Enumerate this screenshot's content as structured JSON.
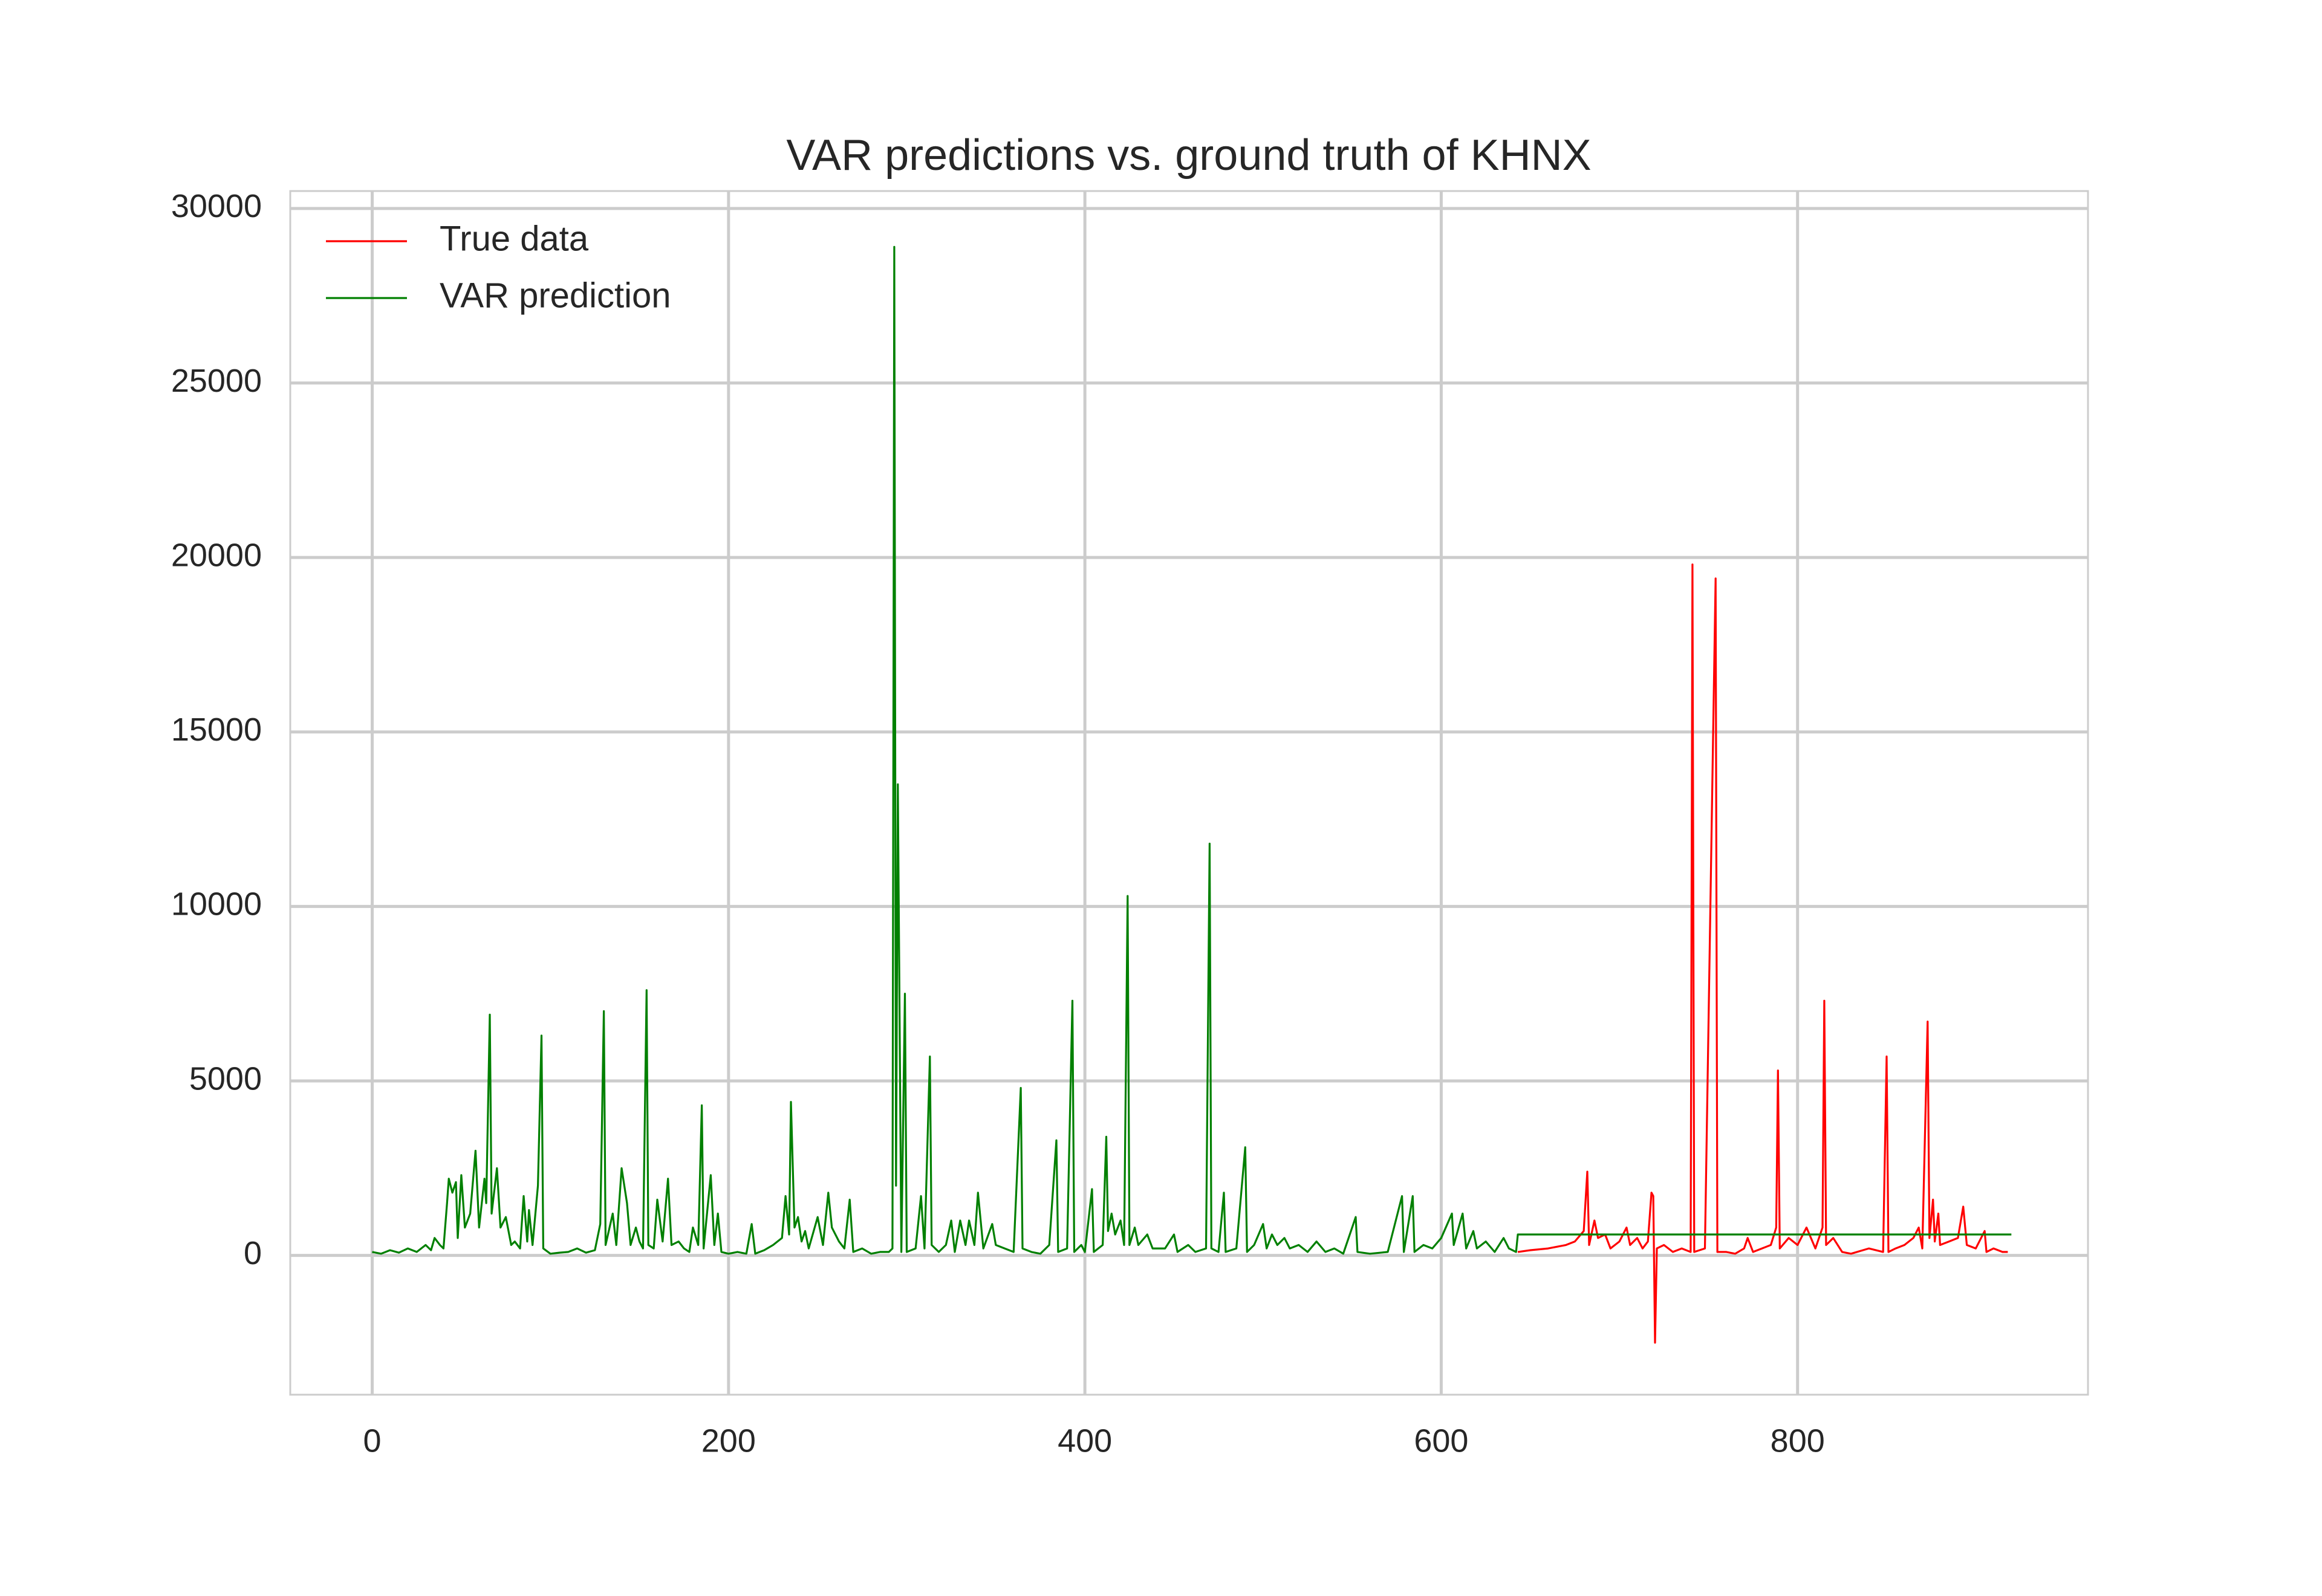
{
  "chart_data": {
    "type": "line",
    "title": "VAR predictions vs. ground truth of KHNX",
    "xlim": [
      -46,
      963
    ],
    "ylim": [
      -3990,
      30500
    ],
    "xticks": [
      0,
      200,
      400,
      600,
      800
    ],
    "yticks": [
      0,
      5000,
      10000,
      15000,
      20000,
      25000,
      30000
    ],
    "grid": true,
    "legend": "upper left",
    "series": [
      {
        "name": "True data",
        "color": "#ff0000",
        "x": [
          643,
          650,
          660,
          670,
          675,
          680,
          682,
          683,
          686,
          688,
          692,
          695,
          700,
          704,
          706,
          710,
          713,
          716,
          718,
          719,
          720,
          721,
          725,
          730,
          735,
          740,
          741,
          742,
          748,
          754,
          755,
          760,
          765,
          770,
          772,
          775,
          780,
          785,
          788,
          789,
          790,
          795,
          800,
          805,
          810,
          814,
          815,
          816,
          820,
          825,
          830,
          840,
          848,
          850,
          851,
          855,
          860,
          865,
          868,
          870,
          873,
          874,
          876,
          877,
          879,
          880,
          885,
          890,
          893,
          895,
          900,
          905,
          906,
          910,
          915,
          918
        ],
        "values": [
          100,
          150,
          200,
          300,
          400,
          700,
          2400,
          300,
          1000,
          500,
          600,
          200,
          400,
          800,
          300,
          500,
          200,
          400,
          1800,
          1700,
          -2500,
          200,
          300,
          100,
          200,
          100,
          19800,
          100,
          200,
          19400,
          100,
          100,
          50,
          200,
          500,
          100,
          200,
          300,
          800,
          5300,
          200,
          500,
          300,
          800,
          200,
          800,
          7300,
          300,
          500,
          100,
          50,
          200,
          100,
          5700,
          100,
          200,
          300,
          500,
          800,
          200,
          6700,
          500,
          1600,
          400,
          1200,
          300,
          400,
          500,
          1400,
          300,
          200,
          700,
          100,
          200,
          100,
          100
        ]
      },
      {
        "name": "VAR prediction",
        "color": "#008000",
        "x": [
          0,
          5,
          10,
          15,
          20,
          25,
          30,
          33,
          35,
          38,
          40,
          42,
          43,
          45,
          47,
          48,
          50,
          52,
          55,
          58,
          60,
          63,
          64,
          66,
          67,
          70,
          72,
          75,
          78,
          80,
          83,
          85,
          87,
          88,
          90,
          93,
          95,
          96,
          100,
          105,
          110,
          115,
          120,
          125,
          128,
          130,
          131,
          135,
          137,
          140,
          143,
          145,
          148,
          150,
          152,
          154,
          155,
          158,
          160,
          163,
          166,
          168,
          172,
          175,
          178,
          180,
          183,
          185,
          186,
          190,
          192,
          194,
          196,
          200,
          205,
          210,
          213,
          215,
          220,
          225,
          230,
          232,
          234,
          235,
          237,
          239,
          241,
          243,
          245,
          250,
          253,
          256,
          258,
          262,
          265,
          268,
          270,
          275,
          280,
          285,
          290,
          292,
          293,
          294,
          295,
          297,
          299,
          300,
          305,
          308,
          310,
          313,
          314,
          318,
          322,
          325,
          327,
          330,
          333,
          335,
          338,
          340,
          343,
          348,
          350,
          355,
          360,
          364,
          365,
          370,
          375,
          380,
          384,
          385,
          390,
          393,
          394,
          398,
          400,
          404,
          405,
          410,
          412,
          413,
          415,
          417,
          420,
          422,
          424,
          425,
          428,
          430,
          435,
          438,
          445,
          450,
          452,
          458,
          462,
          468,
          470,
          471,
          475,
          478,
          479,
          485,
          490,
          491,
          495,
          500,
          502,
          505,
          508,
          512,
          515,
          520,
          525,
          530,
          535,
          540,
          545,
          552,
          553,
          560,
          570,
          578,
          579,
          584,
          585,
          590,
          595,
          600,
          606,
          607,
          612,
          614,
          618,
          620,
          625,
          630,
          635,
          638,
          642,
          643,
          920
        ],
        "values": [
          100,
          50,
          150,
          80,
          200,
          100,
          300,
          150,
          500,
          300,
          200,
          1500,
          2200,
          1800,
          2100,
          500,
          2300,
          800,
          1200,
          3000,
          800,
          2200,
          1500,
          6900,
          1200,
          2500,
          800,
          1100,
          300,
          400,
          200,
          1700,
          400,
          1300,
          300,
          2000,
          6300,
          200,
          50,
          80,
          100,
          200,
          80,
          150,
          900,
          7000,
          300,
          1200,
          300,
          2500,
          1500,
          300,
          800,
          400,
          200,
          7600,
          300,
          200,
          1600,
          400,
          2200,
          300,
          400,
          200,
          100,
          800,
          300,
          4300,
          200,
          2300,
          300,
          1200,
          100,
          50,
          100,
          50,
          900,
          50,
          150,
          300,
          500,
          1700,
          600,
          4400,
          800,
          1100,
          400,
          700,
          200,
          1100,
          300,
          1800,
          800,
          400,
          200,
          1600,
          100,
          200,
          50,
          100,
          100,
          200,
          28900,
          2000,
          13500,
          100,
          7500,
          100,
          200,
          1700,
          200,
          5700,
          300,
          100,
          300,
          1000,
          100,
          1000,
          300,
          1000,
          300,
          1800,
          200,
          900,
          300,
          200,
          100,
          4800,
          200,
          100,
          50,
          300,
          3300,
          100,
          200,
          7300,
          100,
          300,
          100,
          1900,
          100,
          300,
          3400,
          700,
          1200,
          600,
          1000,
          300,
          10300,
          300,
          800,
          300,
          600,
          200,
          200,
          600,
          100,
          300,
          100,
          200,
          11800,
          200,
          100,
          1800,
          100,
          200,
          3100,
          100,
          300,
          900,
          200,
          600,
          300,
          500,
          200,
          300,
          100,
          400,
          100,
          200,
          50,
          1100,
          100,
          50,
          100,
          1700,
          100,
          1700,
          100,
          300,
          200,
          500,
          1200,
          300,
          1200,
          200,
          700,
          200,
          400,
          100,
          500,
          200,
          100,
          600,
          600
        ]
      }
    ]
  }
}
